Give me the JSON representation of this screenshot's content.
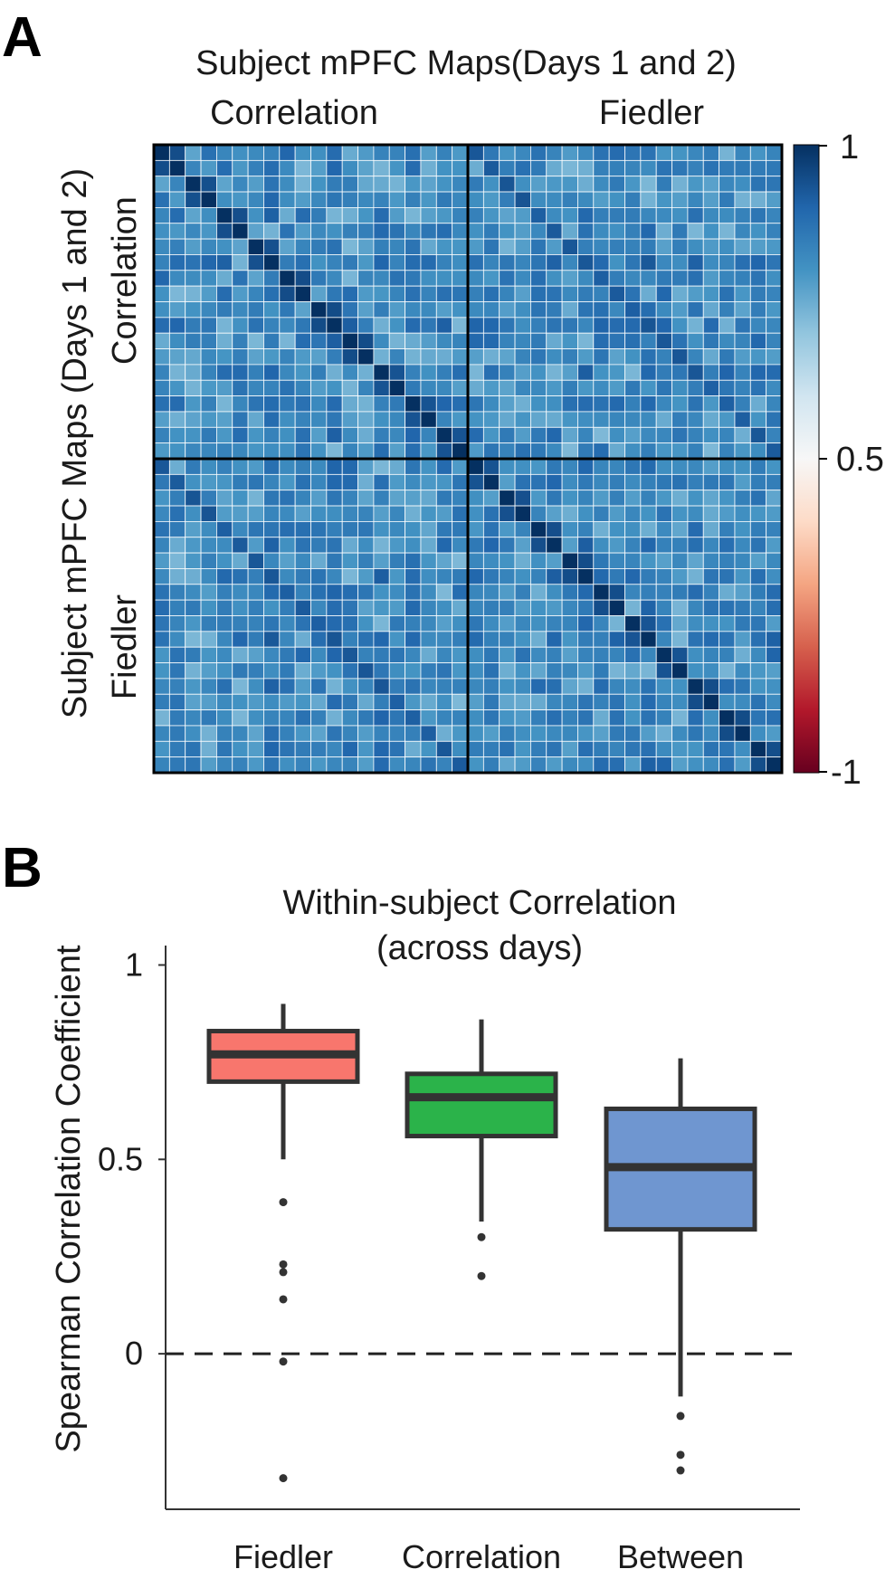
{
  "panel_a": {
    "letter": "A",
    "title": "Subject mPFC Maps(Days 1 and 2)",
    "col_labels": [
      "Correlation",
      "Fiedler"
    ],
    "row_labels": [
      "Correlation",
      "Fiedler"
    ],
    "y_title": "Subject mPFC Maps (Days 1 and 2)",
    "colorbar": {
      "max_label": "1",
      "mid_label": "0.5",
      "min_label": "-1",
      "colors": [
        "#67001f",
        "#b2182b",
        "#d6604d",
        "#f4a582",
        "#fddbc7",
        "#f7f7f7",
        "#d1e5f0",
        "#92c5de",
        "#4393c3",
        "#2166ac",
        "#053061"
      ]
    }
  },
  "panel_b": {
    "letter": "B",
    "title_line1": "Within-subject Correlation",
    "title_line2": "(across days)",
    "ylabel": "Spearman Correlation Coefficient",
    "y_ticks": [
      "0",
      "0.5",
      "1"
    ],
    "x_labels": [
      "Fiedler",
      "Correlation",
      "Between"
    ]
  },
  "chart_data": [
    {
      "type": "heatmap",
      "title": "Subject mPFC Maps(Days 1 and 2)",
      "ylabel": "Subject mPFC Maps (Days 1 and 2)",
      "blocks": [
        "Correlation",
        "Fiedler"
      ],
      "grid_size": 40,
      "subjects": 20,
      "color_range": [
        -1,
        1
      ],
      "colorbar_ticks": [
        "1",
        "0.5",
        "-1"
      ],
      "diagonal_value": 1.0,
      "within_subject_value": 0.9,
      "off_diagonal_range": [
        0.45,
        0.85
      ]
    },
    {
      "type": "box",
      "title": "Within-subject Correlation (across days)",
      "ylabel": "Spearman Correlation Coefficient",
      "ylim": [
        -0.4,
        1.05
      ],
      "reference_line": 0,
      "categories": [
        "Fiedler",
        "Correlation",
        "Between"
      ],
      "series": [
        {
          "category": "Fiedler",
          "color": "#f8766d",
          "whisker_low": 0.5,
          "q1": 0.7,
          "median": 0.77,
          "q3": 0.83,
          "whisker_high": 0.9,
          "outliers": [
            0.39,
            0.23,
            0.21,
            0.14,
            -0.02,
            -0.32
          ]
        },
        {
          "category": "Correlation",
          "color": "#2bb34a",
          "whisker_low": 0.34,
          "q1": 0.56,
          "median": 0.66,
          "q3": 0.72,
          "whisker_high": 0.86,
          "outliers": [
            0.3,
            0.2
          ]
        },
        {
          "category": "Between",
          "color": "#6f96d0",
          "whisker_low": -0.11,
          "q1": 0.32,
          "median": 0.48,
          "q3": 0.63,
          "whisker_high": 0.76,
          "outliers": [
            -0.16,
            -0.26,
            -0.3
          ]
        }
      ]
    }
  ]
}
